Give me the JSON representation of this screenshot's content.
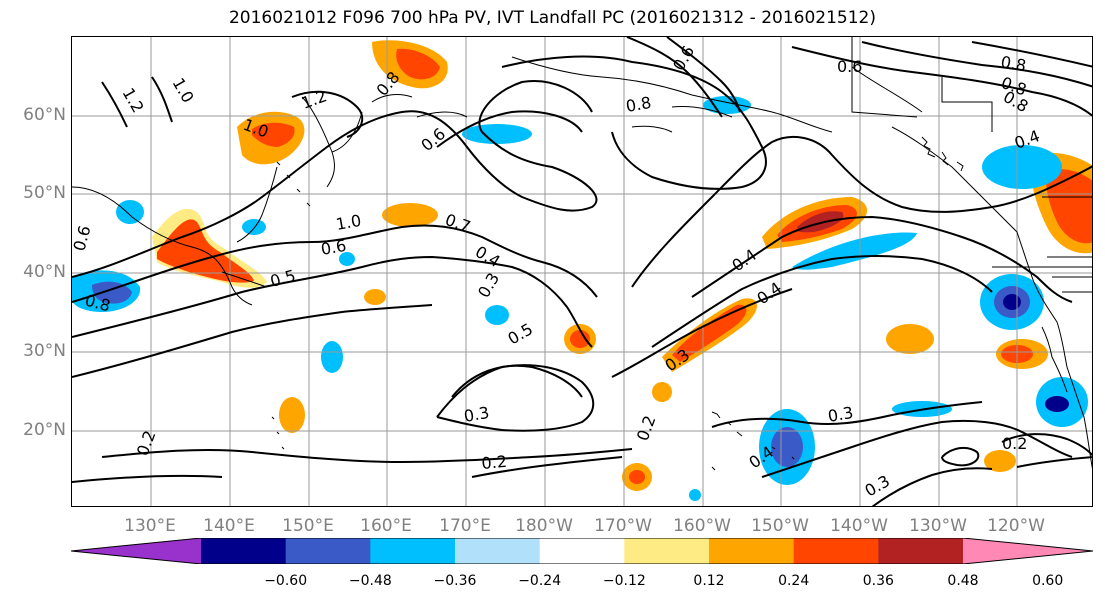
{
  "title": "2016021012 F096 700 hPa PV, IVT Landfall PC (2016021312 - 2016021512)",
  "lat_labels": [
    "60°N",
    "50°N",
    "40°N",
    "30°N",
    "20°N"
  ],
  "lon_labels": [
    "130°E",
    "140°E",
    "150°E",
    "160°E",
    "170°E",
    "180°W",
    "170°W",
    "160°W",
    "150°W",
    "140°W",
    "130°W",
    "120°W"
  ],
  "colorbar": {
    "colors": [
      "#9932cc",
      "#00008b",
      "#3a5bc7",
      "#00bfff",
      "#b0e0fa",
      "#ffffff",
      "#ffeb84",
      "#ffa500",
      "#ff4500",
      "#b22222",
      "#ff88b4"
    ],
    "tick_labels": [
      "−0.60",
      "−0.48",
      "−0.36",
      "−0.24",
      "−0.12",
      "0.12",
      "0.24",
      "0.36",
      "0.48",
      "0.60"
    ]
  },
  "contour_labels": [
    "1.2",
    "1.0",
    "1.2",
    "0.8",
    "1.0",
    "1.0",
    "0.6",
    "0.8",
    "0.6",
    "0.6",
    "0.8",
    "0.8",
    "0.4",
    "0.6",
    "0.5",
    "0.7",
    "0.4",
    "0.3",
    "0.5",
    "0.8",
    "0.3",
    "0.3",
    "0.2",
    "0.2",
    "0.4",
    "0.4",
    "0.2",
    "0.3",
    "0.3",
    "0.2",
    "0.4"
  ],
  "colors": {
    "contour": "#000000",
    "grid": "#9a9a9a",
    "coast": "#000000",
    "axis_text": "#808080"
  }
}
